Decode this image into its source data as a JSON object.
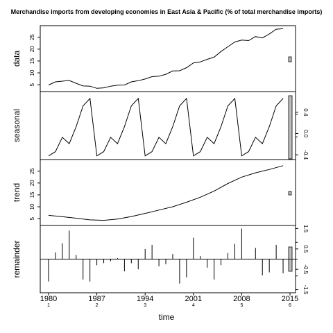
{
  "chart_data": {
    "type": "line",
    "title": "Merchandise imports from developing economies in East Asia & Pacific (% of total merchandise imports)",
    "xlabel": "time",
    "xticks": [
      "1980",
      "1987",
      "1994",
      "2001",
      "2008",
      "2015"
    ],
    "xticks_sub": [
      "1",
      "2",
      "3",
      "4",
      "5",
      "6"
    ],
    "xlim": [
      1980,
      2015
    ],
    "panels": [
      {
        "name": "data",
        "ylim": [
          3,
          29
        ],
        "yticks": [
          "5",
          "10",
          "15",
          "20",
          "25"
        ],
        "tick_values": [
          5,
          10,
          15,
          20,
          25
        ],
        "x": [
          1980,
          1981,
          1982,
          1983,
          1984,
          1985,
          1986,
          1987,
          1988,
          1989,
          1990,
          1991,
          1992,
          1993,
          1994,
          1995,
          1996,
          1997,
          1998,
          1999,
          2000,
          2001,
          2002,
          2003,
          2004,
          2005,
          2006,
          2007,
          2008,
          2009,
          2010,
          2011,
          2012,
          2013,
          2014
        ],
        "values": [
          4.9,
          6.2,
          6.5,
          6.8,
          5.6,
          4.5,
          4.4,
          3.5,
          3.7,
          4.4,
          4.8,
          4.9,
          6.2,
          6.7,
          7.4,
          8.4,
          8.6,
          9.4,
          10.8,
          10.9,
          12.2,
          14.2,
          14.6,
          15.7,
          16.6,
          19.0,
          21.0,
          23.0,
          23.8,
          23.6,
          25.3,
          24.7,
          26.4,
          28.4,
          28.6
        ]
      },
      {
        "name": "seasonal",
        "ylim": [
          -0.45,
          0.75
        ],
        "yticks": [
          "-0.4",
          "0.0",
          "0.4"
        ],
        "tick_values": [
          -0.4,
          0.0,
          0.4
        ],
        "x": [
          1980,
          1981,
          1982,
          1983,
          1984,
          1985,
          1986,
          1987,
          1988,
          1989,
          1990,
          1991,
          1992,
          1993,
          1994,
          1995,
          1996,
          1997,
          1998,
          1999,
          2000,
          2001,
          2002,
          2003,
          2004,
          2005,
          2006,
          2007,
          2008,
          2009,
          2010,
          2011,
          2012,
          2013,
          2014
        ],
        "values": [
          -0.42,
          -0.34,
          -0.07,
          -0.19,
          0.13,
          0.52,
          0.66,
          -0.42,
          -0.34,
          -0.07,
          -0.19,
          0.13,
          0.52,
          0.66,
          -0.42,
          -0.34,
          -0.07,
          -0.19,
          0.13,
          0.52,
          0.66,
          -0.42,
          -0.34,
          -0.07,
          -0.19,
          0.13,
          0.52,
          0.66,
          -0.42,
          -0.34,
          -0.07,
          -0.19,
          0.13,
          0.52,
          0.66
        ]
      },
      {
        "name": "trend",
        "ylim": [
          3,
          29
        ],
        "yticks": [
          "5",
          "10",
          "15",
          "20",
          "25"
        ],
        "tick_values": [
          5,
          10,
          15,
          20,
          25
        ],
        "x": [
          1980,
          1982,
          1984,
          1986,
          1987,
          1988,
          1990,
          1992,
          1994,
          1996,
          1998,
          2000,
          2002,
          2004,
          2006,
          2008,
          2010,
          2012,
          2014
        ],
        "values": [
          6.4,
          5.8,
          5.2,
          4.5,
          4.4,
          4.3,
          4.8,
          5.9,
          7.2,
          8.6,
          10.0,
          11.9,
          14.0,
          16.6,
          19.8,
          22.5,
          24.3,
          25.7,
          27.3
        ]
      },
      {
        "name": "remainder",
        "ylim": [
          -1.55,
          1.55
        ],
        "yticks": [
          "-1.5",
          "-0.5",
          "0.5",
          "1.5"
        ],
        "tick_values": [
          -1.5,
          -0.5,
          0.5,
          1.5
        ],
        "x": [
          1980,
          1981,
          1982,
          1983,
          1984,
          1985,
          1986,
          1987,
          1988,
          1989,
          1990,
          1991,
          1992,
          1993,
          1994,
          1995,
          1996,
          1997,
          1998,
          1999,
          2000,
          2001,
          2002,
          2003,
          2004,
          2005,
          2006,
          2007,
          2008,
          2009,
          2010,
          2011,
          2012,
          2013,
          2014
        ],
        "values": [
          -1.1,
          0.33,
          0.78,
          1.4,
          0.2,
          -1.0,
          -1.1,
          -0.3,
          -0.2,
          -0.1,
          0.05,
          -0.6,
          -0.2,
          -0.5,
          0.5,
          0.7,
          -0.35,
          -0.25,
          0.25,
          -1.2,
          -0.9,
          1.05,
          0.15,
          -0.42,
          -1.0,
          -0.3,
          0.3,
          0.75,
          1.5,
          0.02,
          0.55,
          -0.8,
          -0.65,
          0.7,
          -0.7
        ]
      }
    ]
  }
}
